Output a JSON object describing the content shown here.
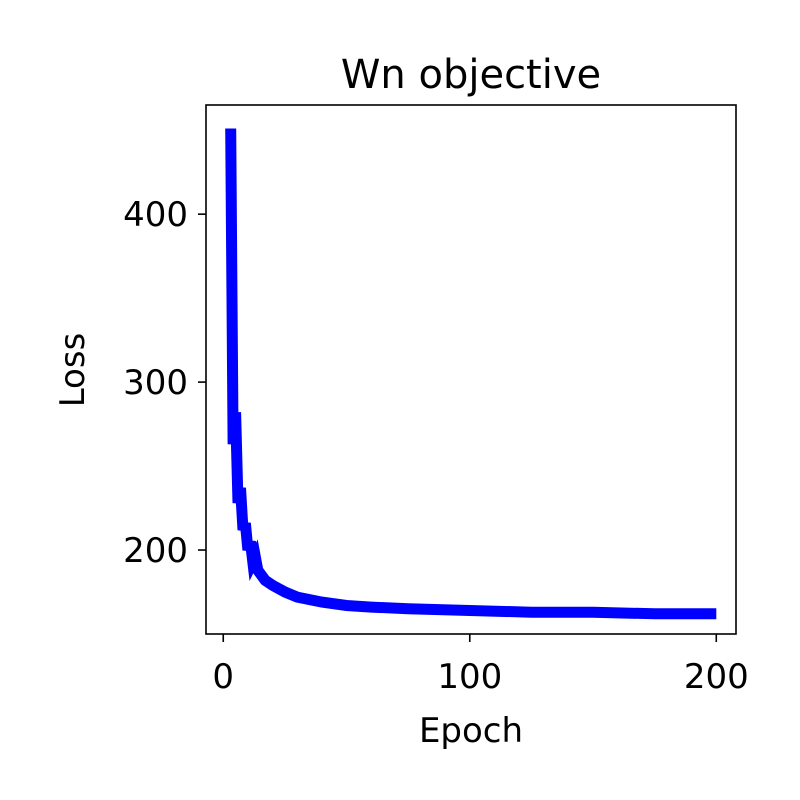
{
  "chart_data": {
    "type": "line",
    "title": "Wn objective",
    "xlabel": "Epoch",
    "ylabel": "Loss",
    "xlim": [
      -7,
      208
    ],
    "ylim": [
      150,
      465
    ],
    "xticks": [
      0,
      100,
      200
    ],
    "yticks": [
      200,
      300,
      400
    ],
    "grid": false,
    "color": "#0000ff",
    "series": [
      {
        "x": [
          3,
          4,
          5,
          6,
          7,
          8,
          9,
          10,
          11,
          12,
          13,
          14,
          15,
          17,
          20,
          25,
          30,
          40,
          50,
          60,
          75,
          100,
          125,
          150,
          175,
          200
        ],
        "values": [
          451,
          263,
          282,
          228,
          237,
          212,
          216,
          200,
          205,
          193,
          196,
          188,
          186,
          182,
          179,
          175,
          172,
          169,
          167,
          166,
          165,
          164,
          163,
          163,
          162,
          162
        ]
      }
    ]
  }
}
